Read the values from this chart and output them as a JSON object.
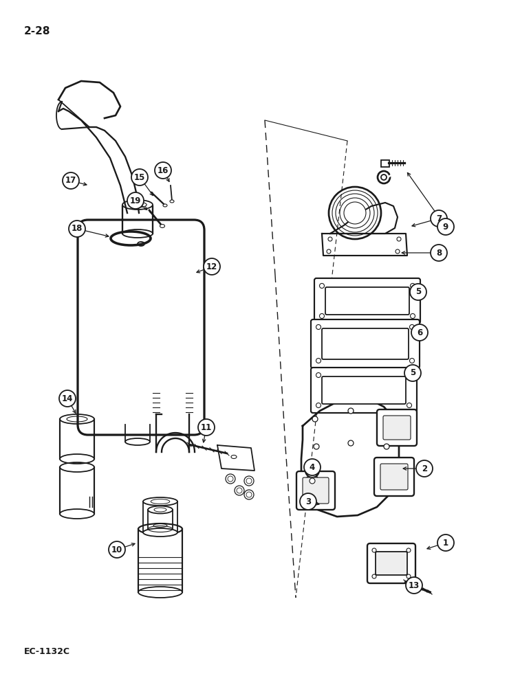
{
  "page_number": "2-28",
  "figure_code": "EC-1132C",
  "background_color": "#ffffff",
  "line_color": "#1a1a1a",
  "figsize": [
    7.72,
    10.0
  ],
  "dpi": 100,
  "label_circles": [
    [
      1,
      648,
      790
    ],
    [
      2,
      617,
      682
    ],
    [
      3,
      448,
      730
    ],
    [
      4,
      454,
      680
    ],
    [
      5,
      608,
      425
    ],
    [
      5,
      600,
      543
    ],
    [
      6,
      610,
      484
    ],
    [
      7,
      638,
      318
    ],
    [
      8,
      638,
      368
    ],
    [
      9,
      648,
      330
    ],
    [
      10,
      170,
      800
    ],
    [
      11,
      300,
      622
    ],
    [
      12,
      308,
      388
    ],
    [
      13,
      602,
      852
    ],
    [
      14,
      98,
      580
    ],
    [
      15,
      203,
      258
    ],
    [
      16,
      237,
      248
    ],
    [
      17,
      103,
      263
    ],
    [
      18,
      112,
      333
    ],
    [
      19,
      197,
      292
    ]
  ]
}
